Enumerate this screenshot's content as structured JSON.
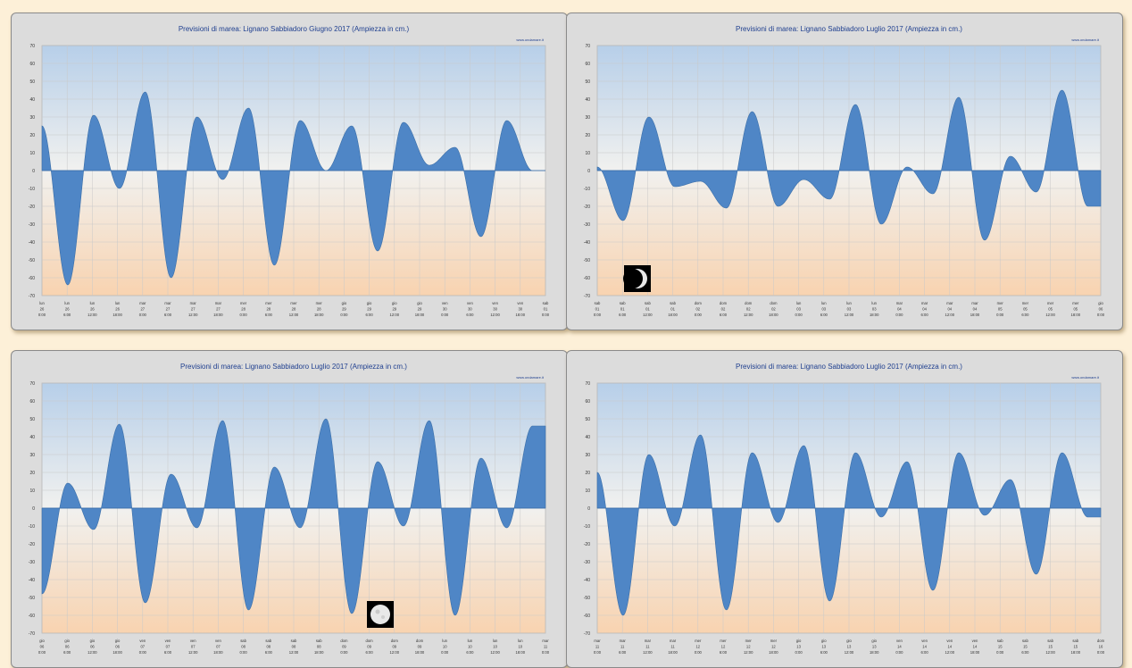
{
  "charts": [
    {
      "title": "Previsioni di marea: Lignano Sabbiadoro Giugno 2017 (Ampiezza in cm.)",
      "credit": "www.ondamare.it",
      "moon": null
    },
    {
      "title": "Previsioni di marea: Lignano Sabbiadoro Luglio 2017 (Ampiezza in cm.)",
      "credit": "www.ondamare.it",
      "moon": "crescent"
    },
    {
      "title": "Previsioni di marea: Lignano Sabbiadoro Luglio 2017 (Ampiezza in cm.)",
      "credit": "www.ondamare.it",
      "moon": "full"
    },
    {
      "title": "Previsioni di marea: Lignano Sabbiadoro Luglio 2017 (Ampiezza in cm.)",
      "credit": "www.ondamare.it",
      "moon": null
    }
  ],
  "chart_data": [
    {
      "type": "area",
      "title": "Previsioni di marea: Lignano Sabbiadoro Giugno 2017 (Ampiezza in cm.)",
      "ylim": [
        -70,
        70
      ],
      "yticks": [
        70,
        60,
        50,
        40,
        30,
        20,
        10,
        0,
        -10,
        -20,
        -30,
        -40,
        -50,
        -60,
        -70
      ],
      "grid": true,
      "extrema": [
        25,
        -64,
        31,
        -10,
        44,
        -60,
        30,
        -5,
        35,
        -53,
        28,
        0,
        25,
        -45,
        27,
        3,
        13,
        -37,
        28,
        0
      ],
      "xticks": [
        {
          "day": "lun",
          "date": "26",
          "time": "0:00"
        },
        {
          "day": "lun",
          "date": "26",
          "time": "6:00"
        },
        {
          "day": "lun",
          "date": "26",
          "time": "12:00"
        },
        {
          "day": "lun",
          "date": "26",
          "time": "18:00"
        },
        {
          "day": "mar",
          "date": "27",
          "time": "0:00"
        },
        {
          "day": "mar",
          "date": "27",
          "time": "6:00"
        },
        {
          "day": "mar",
          "date": "27",
          "time": "12:00"
        },
        {
          "day": "mar",
          "date": "27",
          "time": "18:00"
        },
        {
          "day": "mer",
          "date": "28",
          "time": "0:00"
        },
        {
          "day": "mer",
          "date": "28",
          "time": "6:00"
        },
        {
          "day": "mer",
          "date": "28",
          "time": "12:00"
        },
        {
          "day": "mer",
          "date": "28",
          "time": "18:00"
        },
        {
          "day": "gio",
          "date": "29",
          "time": "0:00"
        },
        {
          "day": "gio",
          "date": "29",
          "time": "6:00"
        },
        {
          "day": "gio",
          "date": "29",
          "time": "12:00"
        },
        {
          "day": "gio",
          "date": "29",
          "time": "18:00"
        },
        {
          "day": "ven",
          "date": "30",
          "time": "0:00"
        },
        {
          "day": "ven",
          "date": "30",
          "time": "6:00"
        },
        {
          "day": "ven",
          "date": "30",
          "time": "12:00"
        },
        {
          "day": "ven",
          "date": "30",
          "time": "18:00"
        },
        {
          "day": "sab",
          "date": "01",
          "time": "0:00"
        }
      ]
    },
    {
      "type": "area",
      "title": "Previsioni di marea: Lignano Sabbiadoro Luglio 2017 (Ampiezza in cm.)",
      "ylim": [
        -70,
        70
      ],
      "yticks": [
        70,
        60,
        50,
        40,
        30,
        20,
        10,
        0,
        -10,
        -20,
        -30,
        -40,
        -50,
        -60,
        -70
      ],
      "grid": true,
      "extrema": [
        2,
        -28,
        30,
        -9,
        -6,
        -21,
        33,
        -20,
        -5,
        -16,
        37,
        -30,
        2,
        -13,
        41,
        -39,
        8,
        -12,
        45,
        -20
      ],
      "xticks": [
        {
          "day": "sab",
          "date": "01",
          "time": "0:00"
        },
        {
          "day": "sab",
          "date": "01",
          "time": "6:00"
        },
        {
          "day": "sab",
          "date": "01",
          "time": "12:00"
        },
        {
          "day": "sab",
          "date": "01",
          "time": "18:00"
        },
        {
          "day": "dom",
          "date": "02",
          "time": "0:00"
        },
        {
          "day": "dom",
          "date": "02",
          "time": "6:00"
        },
        {
          "day": "dom",
          "date": "02",
          "time": "12:00"
        },
        {
          "day": "dom",
          "date": "02",
          "time": "18:00"
        },
        {
          "day": "lun",
          "date": "03",
          "time": "0:00"
        },
        {
          "day": "lun",
          "date": "03",
          "time": "6:00"
        },
        {
          "day": "lun",
          "date": "03",
          "time": "12:00"
        },
        {
          "day": "lun",
          "date": "03",
          "time": "18:00"
        },
        {
          "day": "mar",
          "date": "04",
          "time": "0:00"
        },
        {
          "day": "mar",
          "date": "04",
          "time": "6:00"
        },
        {
          "day": "mar",
          "date": "04",
          "time": "12:00"
        },
        {
          "day": "mar",
          "date": "04",
          "time": "18:00"
        },
        {
          "day": "mer",
          "date": "05",
          "time": "0:00"
        },
        {
          "day": "mer",
          "date": "05",
          "time": "6:00"
        },
        {
          "day": "mer",
          "date": "05",
          "time": "12:00"
        },
        {
          "day": "mer",
          "date": "05",
          "time": "18:00"
        },
        {
          "day": "gio",
          "date": "06",
          "time": "0:00"
        }
      ]
    },
    {
      "type": "area",
      "title": "Previsioni di marea: Lignano Sabbiadoro Luglio 2017 (Ampiezza in cm.)",
      "ylim": [
        -70,
        70
      ],
      "yticks": [
        70,
        60,
        50,
        40,
        30,
        20,
        10,
        0,
        -10,
        -20,
        -30,
        -40,
        -50,
        -60,
        -70
      ],
      "grid": true,
      "extrema": [
        -48,
        14,
        -12,
        47,
        -53,
        19,
        -11,
        49,
        -57,
        23,
        -11,
        50,
        -59,
        26,
        -10,
        49,
        -60,
        28,
        -11,
        46
      ],
      "xticks": [
        {
          "day": "gio",
          "date": "06",
          "time": "0:00"
        },
        {
          "day": "gio",
          "date": "06",
          "time": "6:00"
        },
        {
          "day": "gio",
          "date": "06",
          "time": "12:00"
        },
        {
          "day": "gio",
          "date": "06",
          "time": "18:00"
        },
        {
          "day": "ven",
          "date": "07",
          "time": "0:00"
        },
        {
          "day": "ven",
          "date": "07",
          "time": "6:00"
        },
        {
          "day": "ven",
          "date": "07",
          "time": "12:00"
        },
        {
          "day": "ven",
          "date": "07",
          "time": "18:00"
        },
        {
          "day": "sab",
          "date": "08",
          "time": "0:00"
        },
        {
          "day": "sab",
          "date": "08",
          "time": "6:00"
        },
        {
          "day": "sab",
          "date": "08",
          "time": "12:00"
        },
        {
          "day": "sab",
          "date": "08",
          "time": "18:00"
        },
        {
          "day": "dom",
          "date": "09",
          "time": "0:00"
        },
        {
          "day": "dom",
          "date": "09",
          "time": "6:00"
        },
        {
          "day": "dom",
          "date": "09",
          "time": "12:00"
        },
        {
          "day": "dom",
          "date": "09",
          "time": "18:00"
        },
        {
          "day": "lun",
          "date": "10",
          "time": "0:00"
        },
        {
          "day": "lun",
          "date": "10",
          "time": "6:00"
        },
        {
          "day": "lun",
          "date": "10",
          "time": "12:00"
        },
        {
          "day": "lun",
          "date": "10",
          "time": "18:00"
        },
        {
          "day": "mar",
          "date": "11",
          "time": "0:00"
        }
      ]
    },
    {
      "type": "area",
      "title": "Previsioni di marea: Lignano Sabbiadoro Luglio 2017 (Ampiezza in cm.)",
      "ylim": [
        -70,
        70
      ],
      "yticks": [
        70,
        60,
        50,
        40,
        30,
        20,
        10,
        0,
        -10,
        -20,
        -30,
        -40,
        -50,
        -60,
        -70
      ],
      "grid": true,
      "extrema": [
        20,
        -60,
        30,
        -10,
        41,
        -57,
        31,
        -8,
        35,
        -52,
        31,
        -5,
        26,
        -46,
        31,
        -4,
        16,
        -37,
        31,
        -5
      ],
      "xticks": [
        {
          "day": "mar",
          "date": "11",
          "time": "0:00"
        },
        {
          "day": "mar",
          "date": "11",
          "time": "6:00"
        },
        {
          "day": "mar",
          "date": "11",
          "time": "12:00"
        },
        {
          "day": "mar",
          "date": "11",
          "time": "18:00"
        },
        {
          "day": "mer",
          "date": "12",
          "time": "0:00"
        },
        {
          "day": "mer",
          "date": "12",
          "time": "6:00"
        },
        {
          "day": "mer",
          "date": "12",
          "time": "12:00"
        },
        {
          "day": "mer",
          "date": "12",
          "time": "18:00"
        },
        {
          "day": "gio",
          "date": "13",
          "time": "0:00"
        },
        {
          "day": "gio",
          "date": "13",
          "time": "6:00"
        },
        {
          "day": "gio",
          "date": "13",
          "time": "12:00"
        },
        {
          "day": "gio",
          "date": "13",
          "time": "18:00"
        },
        {
          "day": "ven",
          "date": "14",
          "time": "0:00"
        },
        {
          "day": "ven",
          "date": "14",
          "time": "6:00"
        },
        {
          "day": "ven",
          "date": "14",
          "time": "12:00"
        },
        {
          "day": "ven",
          "date": "14",
          "time": "18:00"
        },
        {
          "day": "sab",
          "date": "15",
          "time": "0:00"
        },
        {
          "day": "sab",
          "date": "15",
          "time": "6:00"
        },
        {
          "day": "sab",
          "date": "15",
          "time": "12:00"
        },
        {
          "day": "sab",
          "date": "15",
          "time": "18:00"
        },
        {
          "day": "dom",
          "date": "16",
          "time": "0:00"
        }
      ]
    }
  ]
}
